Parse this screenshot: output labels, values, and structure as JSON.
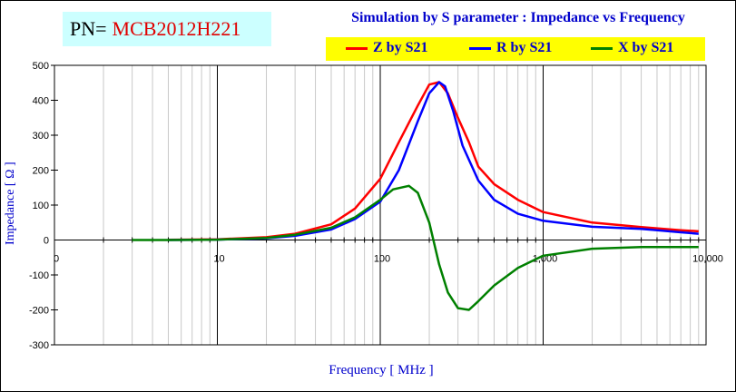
{
  "header": {
    "pn_label": "PN=",
    "pn_value": "MCB2012H221"
  },
  "chart_data": {
    "type": "line",
    "title": "Simulation by S parameter : Impedance vs Frequency",
    "xlabel": "Frequency [ MHz ]",
    "ylabel": "Impedance [ Ω ]",
    "xscale": "log",
    "xlim": [
      1,
      10000
    ],
    "ylim": [
      -300,
      500
    ],
    "grid": true,
    "legend_position": "top-right",
    "x_tick_labels": [
      "0",
      "10",
      "100",
      "1,000",
      "10,000"
    ],
    "y_tick_labels": [
      "500",
      "400",
      "300",
      "200",
      "100",
      "0",
      "-100",
      "-200",
      "-300"
    ],
    "series": [
      {
        "name": "Z by S21",
        "color": "#ff0000",
        "x": [
          5,
          10,
          20,
          30,
          50,
          70,
          100,
          130,
          170,
          200,
          230,
          260,
          300,
          350,
          400,
          500,
          700,
          1000,
          2000,
          4000,
          7000,
          9000
        ],
        "y": [
          0.5,
          2,
          8,
          18,
          45,
          90,
          175,
          280,
          385,
          445,
          452,
          420,
          350,
          280,
          210,
          160,
          115,
          80,
          50,
          37,
          28,
          25
        ]
      },
      {
        "name": "R by S21",
        "color": "#0000ff",
        "x": [
          5,
          10,
          20,
          30,
          50,
          70,
          100,
          130,
          170,
          200,
          230,
          250,
          280,
          320,
          400,
          500,
          700,
          1000,
          2000,
          4000,
          7000,
          9000
        ],
        "y": [
          0,
          1,
          5,
          12,
          30,
          60,
          110,
          200,
          340,
          420,
          452,
          440,
          370,
          270,
          170,
          115,
          75,
          55,
          38,
          32,
          22,
          18
        ]
      },
      {
        "name": "X by S21",
        "color": "#008000",
        "x": [
          3,
          5,
          10,
          20,
          30,
          50,
          70,
          100,
          120,
          150,
          170,
          200,
          230,
          260,
          300,
          350,
          400,
          500,
          700,
          1000,
          2000,
          4000,
          7000,
          9000
        ],
        "y": [
          0,
          0,
          1,
          6,
          15,
          35,
          65,
          115,
          145,
          155,
          135,
          50,
          -70,
          -150,
          -195,
          -200,
          -175,
          -130,
          -80,
          -45,
          -25,
          -20,
          -20,
          -20
        ]
      }
    ]
  }
}
